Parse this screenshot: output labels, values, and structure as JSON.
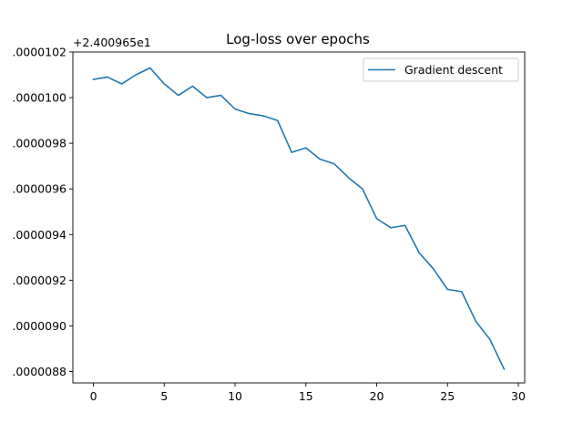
{
  "chart_data": {
    "type": "line",
    "title": "Log-loss over epochs",
    "xlabel": "",
    "ylabel": "",
    "offset_label": "+2.400965e1",
    "xlim": [
      -1.45,
      30.45
    ],
    "ylim": [
      8.75e-06,
      1.02e-05
    ],
    "x_ticks": [
      0,
      5,
      10,
      15,
      20,
      25,
      30
    ],
    "y_ticks": [
      8.8e-06,
      9e-06,
      9.2e-06,
      9.4e-06,
      9.6e-06,
      9.8e-06,
      1e-05,
      1.02e-05
    ],
    "y_tick_labels": [
      ".0000088",
      ".0000090",
      ".0000092",
      ".0000094",
      ".0000096",
      ".0000098",
      ".0000100",
      ".0000102"
    ],
    "legend_position": "top-right",
    "grid": false,
    "series": [
      {
        "name": "Gradient descent",
        "color": "#1f77b4",
        "x": [
          0,
          1,
          2,
          3,
          4,
          5,
          6,
          7,
          8,
          9,
          10,
          11,
          12,
          13,
          14,
          15,
          16,
          17,
          18,
          19,
          20,
          21,
          22,
          23,
          24,
          25,
          26,
          27,
          28,
          29
        ],
        "y": [
          1.008e-05,
          1.009e-05,
          1.006e-05,
          1.01e-05,
          1.013e-05,
          1.006e-05,
          1.001e-05,
          1.005e-05,
          1e-05,
          1.001e-05,
          9.95e-06,
          9.93e-06,
          9.92e-06,
          9.9e-06,
          9.76e-06,
          9.78e-06,
          9.73e-06,
          9.71e-06,
          9.65e-06,
          9.6e-06,
          9.47e-06,
          9.43e-06,
          9.44e-06,
          9.32e-06,
          9.25e-06,
          9.16e-06,
          9.15e-06,
          9.02e-06,
          8.94e-06,
          8.81e-06
        ]
      }
    ]
  }
}
